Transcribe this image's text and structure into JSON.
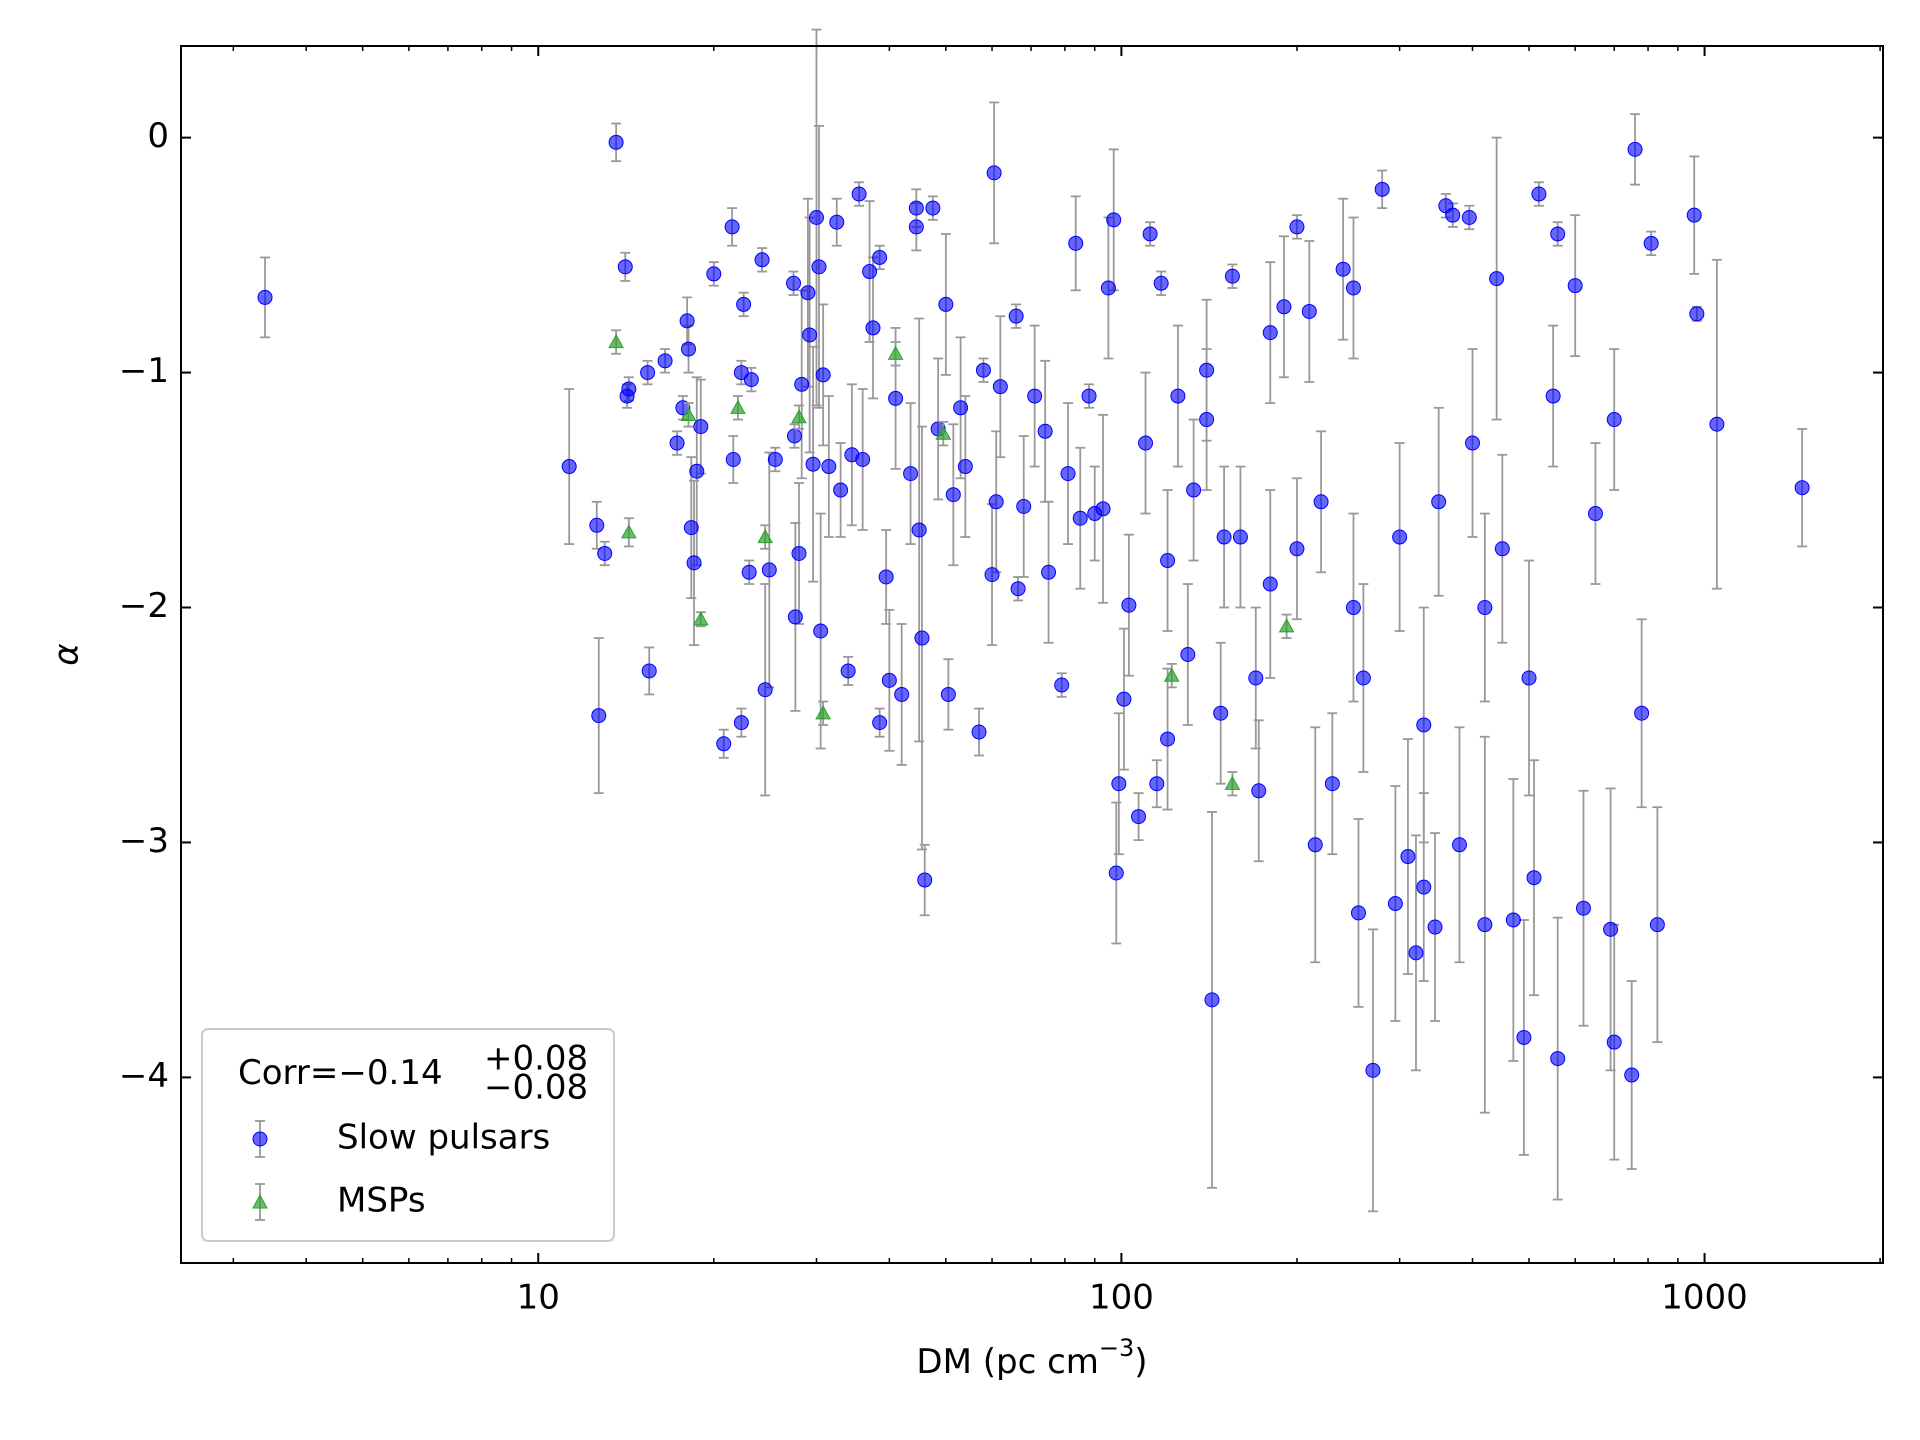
{
  "chart_data": {
    "type": "scatter",
    "xlabel": "DM (pc cm",
    "xlabel_sup": "−3",
    "xlabel_end": ")",
    "ylabel": "α",
    "xlim": [
      2.44,
      2023
    ],
    "ylim": [
      -4.79,
      0.39
    ],
    "xscale": "log",
    "xticks": [
      10,
      100,
      1000
    ],
    "xminorticks": [
      3,
      4,
      5,
      6,
      7,
      8,
      9,
      20,
      30,
      40,
      50,
      60,
      70,
      80,
      90,
      200,
      300,
      400,
      500,
      600,
      700,
      800,
      900,
      2000
    ],
    "yticks": [
      {
        "value": -4,
        "label": "−4"
      },
      {
        "value": -3,
        "label": "−3"
      },
      {
        "value": -2,
        "label": "−2"
      },
      {
        "value": -1,
        "label": "−1"
      },
      0
    ],
    "legend": "lower left",
    "error_color": "#999999",
    "annotation": {
      "text": "Corr=−0.14",
      "sup": "+0.08",
      "sub": "−0.08"
    },
    "series": [
      {
        "name": "Slow pulsars",
        "color": "#0000ff",
        "marker": "circle",
        "x": [
          3.4,
          11.3,
          12.6,
          12.7,
          13.0,
          13.6,
          14.1,
          14.2,
          14.3,
          15.4,
          15.5,
          16.5,
          17.3,
          17.7,
          18.0,
          18.1,
          18.3,
          18.5,
          18.7,
          19.0,
          20.0,
          20.8,
          21.5,
          21.6,
          22.3,
          22.3,
          22.5,
          23.0,
          23.2,
          24.2,
          24.5,
          24.9,
          25.5,
          27.4,
          27.5,
          27.6,
          28.0,
          28.3,
          29.0,
          29.2,
          29.6,
          30.0,
          30.3,
          30.5,
          30.8,
          31.5,
          32.5,
          33.0,
          34.0,
          34.5,
          35.5,
          36.0,
          37.0,
          37.5,
          38.5,
          38.5,
          39.5,
          40.0,
          41.0,
          42.0,
          43.5,
          44.5,
          44.5,
          45.0,
          45.5,
          46.0,
          47.5,
          48.5,
          50.0,
          50.5,
          51.5,
          53.0,
          54.0,
          57.0,
          58.0,
          60.0,
          60.5,
          61.0,
          62.0,
          66.0,
          66.5,
          68.0,
          71.0,
          74.0,
          75.0,
          79.0,
          81.0,
          83.5,
          85.0,
          88.0,
          93.0,
          95.0,
          97.0,
          98.0,
          99.0,
          101.0,
          103.0,
          107.0,
          112.0,
          115.0,
          117.0,
          120.0,
          125.0,
          133.0,
          140.0,
          143.0,
          148.0,
          155.0,
          160.0,
          172.0,
          180.0,
          190.0,
          200.0,
          210.0,
          215.0,
          230.0,
          240.0,
          250.0,
          255.0,
          270.0,
          280.0,
          295.0,
          310.0,
          320.0,
          330.0,
          345.0,
          360.0,
          370.0,
          380.0,
          395.0,
          420.0,
          440.0,
          470.0,
          490.0,
          510.0,
          520.0,
          560.0,
          560.0,
          600.0,
          620.0,
          690.0,
          700.0,
          750.0,
          760.0,
          810.0,
          830.0,
          960.0,
          970.0,
          1050.0,
          1470.0,
          120,
          150,
          180,
          200,
          220,
          250,
          300,
          350,
          400,
          450,
          500,
          550,
          650,
          700,
          780,
          130,
          170,
          260,
          330,
          420,
          90,
          110,
          140
        ],
        "values": [
          -0.68,
          -1.4,
          -1.65,
          -2.46,
          -1.77,
          -0.02,
          -0.55,
          -1.1,
          -1.07,
          -1.0,
          -2.27,
          -0.95,
          -1.3,
          -1.15,
          -0.78,
          -0.9,
          -1.66,
          -1.81,
          -1.42,
          -1.23,
          -0.58,
          -2.58,
          -0.38,
          -1.37,
          -2.49,
          -1.0,
          -0.71,
          -1.85,
          -1.03,
          -0.52,
          -2.35,
          -1.84,
          -1.37,
          -0.62,
          -1.27,
          -2.04,
          -1.77,
          -1.05,
          -0.66,
          -0.84,
          -1.39,
          -0.34,
          -0.55,
          -2.1,
          -1.01,
          -1.4,
          -0.36,
          -1.5,
          -2.27,
          -1.35,
          -0.24,
          -1.37,
          -0.57,
          -0.81,
          -2.49,
          -0.51,
          -1.87,
          -2.31,
          -1.11,
          -2.37,
          -1.43,
          -0.38,
          -0.3,
          -1.67,
          -2.13,
          -3.16,
          -0.3,
          -1.24,
          -0.71,
          -2.37,
          -1.52,
          -1.15,
          -1.4,
          -2.53,
          -0.99,
          -1.86,
          -0.15,
          -1.55,
          -1.06,
          -0.76,
          -1.92,
          -1.57,
          -1.1,
          -1.25,
          -1.85,
          -2.33,
          -1.43,
          -0.45,
          -1.62,
          -1.1,
          -1.58,
          -0.64,
          -0.35,
          -3.13,
          -2.75,
          -2.39,
          -1.99,
          -2.89,
          -0.41,
          -2.75,
          -0.62,
          -2.56,
          -1.1,
          -1.5,
          -0.99,
          -3.67,
          -2.45,
          -0.59,
          -1.7,
          -2.78,
          -0.83,
          -0.72,
          -0.38,
          -0.74,
          -3.01,
          -2.75,
          -0.56,
          -0.64,
          -3.3,
          -3.97,
          -0.22,
          -3.26,
          -3.06,
          -3.47,
          -3.19,
          -3.36,
          -0.29,
          -0.33,
          -3.01,
          -0.34,
          -3.35,
          -0.6,
          -3.33,
          -3.83,
          -3.15,
          -0.24,
          -0.41,
          -3.92,
          -0.63,
          -3.28,
          -3.37,
          -3.85,
          -3.99,
          -0.05,
          -0.45,
          -3.35,
          -0.33,
          -0.75,
          -1.22,
          -1.49,
          -1.8,
          -1.7,
          -1.9,
          -1.75,
          -1.55,
          -2.0,
          -1.7,
          -1.55,
          -1.3,
          -1.75,
          -2.3,
          -1.1,
          -1.6,
          -1.2,
          -2.45,
          -2.2,
          -2.3,
          -2.3,
          -2.5,
          -2.0,
          -1.6,
          -1.3,
          -1.2
        ],
        "errors": [
          0.17,
          0.33,
          0.1,
          0.33,
          0.05,
          0.08,
          0.06,
          0.05,
          0.05,
          0.05,
          0.1,
          0.05,
          0.05,
          0.05,
          0.1,
          0.1,
          0.3,
          0.35,
          0.4,
          0.2,
          0.05,
          0.06,
          0.08,
          0.1,
          0.06,
          0.05,
          0.05,
          0.05,
          0.05,
          0.05,
          0.45,
          0.5,
          0.05,
          0.05,
          0.05,
          0.4,
          0.3,
          0.4,
          0.4,
          0.5,
          0.5,
          0.8,
          0.6,
          0.5,
          0.3,
          0.3,
          0.1,
          0.2,
          0.06,
          0.3,
          0.05,
          0.3,
          0.3,
          0.3,
          0.06,
          0.05,
          0.2,
          0.3,
          0.3,
          0.3,
          0.3,
          0.1,
          0.08,
          0.9,
          0.9,
          0.15,
          0.05,
          0.3,
          0.3,
          0.15,
          0.3,
          0.3,
          0.3,
          0.1,
          0.05,
          0.3,
          0.3,
          0.3,
          0.3,
          0.05,
          0.05,
          0.3,
          0.3,
          0.3,
          0.3,
          0.05,
          0.3,
          0.2,
          0.3,
          0.05,
          0.4,
          0.3,
          0.3,
          0.3,
          0.3,
          0.3,
          0.3,
          0.1,
          0.05,
          0.1,
          0.05,
          0.3,
          0.3,
          0.3,
          0.3,
          0.8,
          0.3,
          0.05,
          0.3,
          0.3,
          0.3,
          0.3,
          0.05,
          0.3,
          0.5,
          0.3,
          0.3,
          0.3,
          0.4,
          0.6,
          0.08,
          0.5,
          0.5,
          0.5,
          0.4,
          0.4,
          0.05,
          0.05,
          0.5,
          0.05,
          0.8,
          0.6,
          0.6,
          0.5,
          0.5,
          0.05,
          0.05,
          0.6,
          0.3,
          0.5,
          0.6,
          0.5,
          0.4,
          0.15,
          0.05,
          0.5,
          0.25,
          0.03,
          0.7,
          0.25,
          0.3,
          0.3,
          0.4,
          0.3,
          0.3,
          0.4,
          0.4,
          0.4,
          0.4,
          0.4,
          0.5,
          0.3,
          0.3,
          0.3,
          0.4,
          0.3,
          0.3,
          0.4,
          0.5,
          0.4,
          0.2,
          0.3,
          0.3
        ]
      },
      {
        "name": "MSPs",
        "color": "#2ca02c",
        "marker": "triangle",
        "x": [
          13.6,
          14.3,
          18.1,
          19.0,
          22.0,
          24.5,
          28.0,
          30.8,
          41.0,
          49.5,
          122,
          155,
          192
        ],
        "values": [
          -0.87,
          -1.68,
          -1.18,
          -2.05,
          -1.15,
          -1.7,
          -1.19,
          -2.45,
          -0.92,
          -1.26,
          -2.29,
          -2.75,
          -2.08
        ],
        "errors": [
          0.05,
          0.06,
          0.05,
          0.03,
          0.05,
          0.05,
          0.05,
          0.05,
          0.05,
          0.05,
          0.05,
          0.05,
          0.05
        ]
      }
    ]
  }
}
